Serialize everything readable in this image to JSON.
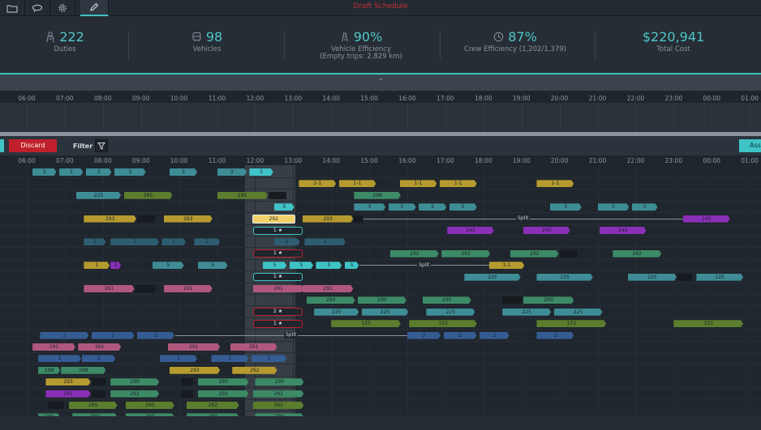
{
  "header": {
    "title": "Draft Schedule",
    "tools": [
      {
        "icon": "folder-icon",
        "active": false
      },
      {
        "icon": "lasso-icon",
        "active": false
      },
      {
        "icon": "gear-icon",
        "active": false
      },
      {
        "icon": "pencil-icon",
        "active": true
      }
    ]
  },
  "kpis": [
    {
      "icon": "duty-person-icon",
      "value": "222",
      "label": "Duties",
      "sublabel": ""
    },
    {
      "icon": "bus-icon",
      "value": "98",
      "label": "Vehicles",
      "sublabel": ""
    },
    {
      "icon": "road-icon",
      "value": "90%",
      "label": "Vehicle Efficiency",
      "sublabel": "(Empty trips: 2,829 km)"
    },
    {
      "icon": "clock-icon",
      "value": "87%",
      "label": "Crew Efficiency (1,202/1,379)",
      "sublabel": ""
    },
    {
      "icon": "",
      "value": "$220,941",
      "label": "Total Cost",
      "sublabel": ""
    }
  ],
  "timeline": {
    "hours": [
      "06:00",
      "07:00",
      "08:00",
      "09:00",
      "10:00",
      "11:00",
      "12:00",
      "13:00",
      "14:00",
      "15:00",
      "16:00",
      "17:00",
      "18:00",
      "19:00",
      "20:00",
      "21:00",
      "22:00",
      "23:00",
      "00:00",
      "01:00"
    ]
  },
  "toolbar": {
    "discard_label": "Discard",
    "filter_label": "Filter",
    "assign_label": "Ass"
  },
  "split_label": "Split",
  "colors": {
    "accent": "#3fc3c6",
    "danger": "#c0202c",
    "teal": "#3e8c96",
    "mustard": "#b59a2f",
    "purple": "#8a2fb8",
    "rose": "#b0587c",
    "green": "#3c8a66",
    "olive": "#5b7d2e",
    "blue": "#355c93",
    "steel": "#2e5d72"
  },
  "gantt": {
    "rows": [
      {
        "bars": [
          {
            "s": 6.15,
            "e": 6.8,
            "c": "teal",
            "t": "3"
          },
          {
            "s": 6.85,
            "e": 7.5,
            "c": "teal",
            "t": "3"
          },
          {
            "s": 7.55,
            "e": 8.25,
            "c": "teal",
            "t": "3"
          },
          {
            "s": 8.3,
            "e": 9.15,
            "c": "teal",
            "t": "3"
          },
          {
            "s": 9.75,
            "e": 10.5,
            "c": "teal",
            "t": "3"
          },
          {
            "s": 11.0,
            "e": 11.8,
            "c": "teal",
            "t": "3"
          },
          {
            "s": 11.85,
            "e": 12.5,
            "c": "accent",
            "t": "5"
          }
        ]
      },
      {
        "bars": [
          {
            "s": 13.15,
            "e": 14.15,
            "c": "mustard",
            "t": "1-1"
          },
          {
            "s": 14.2,
            "e": 15.2,
            "c": "mustard",
            "t": "1-1"
          },
          {
            "s": 15.8,
            "e": 16.8,
            "c": "mustard",
            "t": "1-1"
          },
          {
            "s": 16.85,
            "e": 17.85,
            "c": "mustard",
            "t": "1-1"
          },
          {
            "s": 19.4,
            "e": 20.4,
            "c": "mustard",
            "t": "1-1"
          }
        ]
      },
      {
        "bars": [
          {
            "s": 7.3,
            "e": 8.5,
            "c": "teal",
            "t": "225"
          },
          {
            "s": 8.55,
            "e": 9.85,
            "c": "olive",
            "t": "295"
          },
          {
            "s": 11.0,
            "e": 12.35,
            "c": "olive",
            "t": "295"
          },
          {
            "s": 12.35,
            "e": 12.85,
            "c": "dark",
            "t": ""
          },
          {
            "s": 14.6,
            "e": 15.85,
            "c": "green",
            "t": "298"
          }
        ]
      },
      {
        "bars": [
          {
            "s": 12.5,
            "e": 13.05,
            "c": "accent",
            "t": "5"
          },
          {
            "s": 14.6,
            "e": 15.45,
            "c": "teal",
            "t": "5"
          },
          {
            "s": 15.5,
            "e": 16.25,
            "c": "teal",
            "t": "5"
          },
          {
            "s": 16.3,
            "e": 17.05,
            "c": "teal",
            "t": "5"
          },
          {
            "s": 17.1,
            "e": 17.85,
            "c": "teal",
            "t": "5"
          },
          {
            "s": 19.75,
            "e": 20.6,
            "c": "teal",
            "t": "5"
          },
          {
            "s": 21.0,
            "e": 21.85,
            "c": "teal",
            "t": "5"
          },
          {
            "s": 21.9,
            "e": 22.6,
            "c": "teal",
            "t": "5"
          }
        ]
      },
      {
        "bars": [
          {
            "s": 7.5,
            "e": 8.9,
            "c": "mustard",
            "t": "293"
          },
          {
            "s": 8.9,
            "e": 9.4,
            "c": "dark",
            "t": ""
          },
          {
            "s": 9.6,
            "e": 10.9,
            "c": "mustard",
            "t": "293"
          },
          {
            "s": 11.95,
            "e": 13.05,
            "c": "mustard",
            "t": "292",
            "sel": true
          },
          {
            "s": 13.25,
            "e": 14.6,
            "c": "mustard",
            "t": "293"
          },
          {
            "s": 14.6,
            "e": 14.85,
            "c": "dark",
            "t": ""
          },
          {
            "s": 23.25,
            "e": 24.5,
            "c": "purple",
            "t": "245"
          }
        ],
        "split": {
          "s": 14.85,
          "e": 23.25
        }
      },
      {
        "sels": [
          {
            "s": 11.95,
            "e": 13.25,
            "c": "accent",
            "t": "1 ★"
          }
        ],
        "bars": [
          {
            "s": 17.05,
            "e": 18.3,
            "c": "purple",
            "t": "245"
          },
          {
            "s": 19.05,
            "e": 20.3,
            "c": "purple",
            "t": "245"
          },
          {
            "s": 21.05,
            "e": 22.3,
            "c": "purple",
            "t": "245"
          }
        ]
      },
      {
        "bars": [
          {
            "s": 7.5,
            "e": 8.1,
            "c": "steel",
            "t": "2"
          },
          {
            "s": 8.2,
            "e": 9.5,
            "c": "steel",
            "t": "2"
          },
          {
            "s": 9.55,
            "e": 10.2,
            "c": "steel",
            "t": "2"
          },
          {
            "s": 10.4,
            "e": 11.1,
            "c": "steel",
            "t": "2"
          },
          {
            "s": 12.5,
            "e": 13.2,
            "c": "steel",
            "t": "2"
          },
          {
            "s": 13.3,
            "e": 14.4,
            "c": "steel",
            "t": "2"
          }
        ]
      },
      {
        "sels": [
          {
            "s": 11.95,
            "e": 13.25,
            "c": "danger",
            "t": "1 ★"
          }
        ],
        "bars": [
          {
            "s": 15.55,
            "e": 16.85,
            "c": "green",
            "t": "292"
          },
          {
            "s": 16.9,
            "e": 18.2,
            "c": "green",
            "t": "292"
          },
          {
            "s": 18.7,
            "e": 20.0,
            "c": "green",
            "t": "292"
          },
          {
            "s": 20.0,
            "e": 20.5,
            "c": "dark",
            "t": ""
          },
          {
            "s": 21.4,
            "e": 22.7,
            "c": "green",
            "t": "292"
          }
        ]
      },
      {
        "bars": [
          {
            "s": 7.5,
            "e": 8.2,
            "c": "mustard",
            "t": "1"
          },
          {
            "s": 8.2,
            "e": 8.5,
            "c": "purple",
            "t": "2"
          },
          {
            "s": 9.3,
            "e": 10.15,
            "c": "teal",
            "t": "5"
          },
          {
            "s": 10.5,
            "e": 11.3,
            "c": "teal",
            "t": "5"
          },
          {
            "s": 12.2,
            "e": 12.85,
            "c": "accent",
            "t": "5"
          },
          {
            "s": 12.9,
            "e": 13.55,
            "c": "accent",
            "t": "5"
          },
          {
            "s": 13.6,
            "e": 14.3,
            "c": "accent",
            "t": "5"
          },
          {
            "s": 14.35,
            "e": 14.75,
            "c": "accent",
            "t": "5"
          },
          {
            "s": 18.15,
            "e": 19.1,
            "c": "mustard",
            "t": "1-1"
          }
        ],
        "split": {
          "s": 14.75,
          "e": 18.15
        }
      },
      {
        "sels": [
          {
            "s": 11.95,
            "e": 13.25,
            "c": "accent",
            "t": "1 ★"
          }
        ],
        "bars": [
          {
            "s": 17.5,
            "e": 19.0,
            "c": "teal",
            "t": "225"
          },
          {
            "s": 19.4,
            "e": 20.9,
            "c": "teal",
            "t": "225"
          },
          {
            "s": 21.8,
            "e": 23.1,
            "c": "teal",
            "t": "225"
          },
          {
            "s": 23.1,
            "e": 23.5,
            "c": "dark",
            "t": ""
          },
          {
            "s": 23.6,
            "e": 24.85,
            "c": "teal",
            "t": "225"
          }
        ]
      },
      {
        "bars": [
          {
            "s": 7.5,
            "e": 8.85,
            "c": "rose",
            "t": "291"
          },
          {
            "s": 8.85,
            "e": 9.4,
            "c": "dark",
            "t": ""
          },
          {
            "s": 9.6,
            "e": 10.9,
            "c": "rose",
            "t": "291"
          },
          {
            "s": 11.95,
            "e": 13.3,
            "c": "rose",
            "t": "291"
          },
          {
            "s": 13.25,
            "e": 14.6,
            "c": "rose",
            "t": "291"
          }
        ]
      },
      {
        "bars": [
          {
            "s": 13.35,
            "e": 14.65,
            "c": "green",
            "t": "290"
          },
          {
            "s": 14.7,
            "e": 16.0,
            "c": "green",
            "t": "290"
          },
          {
            "s": 16.4,
            "e": 17.7,
            "c": "green",
            "t": "290"
          },
          {
            "s": 18.5,
            "e": 19.05,
            "c": "dark",
            "t": ""
          },
          {
            "s": 19.05,
            "e": 20.4,
            "c": "green",
            "t": "290"
          }
        ]
      },
      {
        "sels": [
          {
            "s": 11.95,
            "e": 13.25,
            "c": "danger",
            "t": "2 ★"
          }
        ],
        "bars": [
          {
            "s": 13.55,
            "e": 14.75,
            "c": "teal",
            "t": "225"
          },
          {
            "s": 14.8,
            "e": 16.05,
            "c": "teal",
            "t": "225"
          },
          {
            "s": 16.5,
            "e": 17.8,
            "c": "teal",
            "t": "225"
          },
          {
            "s": 18.5,
            "e": 19.8,
            "c": "teal",
            "t": "225"
          },
          {
            "s": 19.85,
            "e": 21.15,
            "c": "teal",
            "t": "225"
          }
        ]
      },
      {
        "sels": [
          {
            "s": 11.95,
            "e": 13.25,
            "c": "danger",
            "t": "1 ★"
          }
        ],
        "bars": [
          {
            "s": 14.0,
            "e": 15.85,
            "c": "olive",
            "t": "133"
          },
          {
            "s": 16.05,
            "e": 17.85,
            "c": "olive",
            "t": "133"
          },
          {
            "s": 19.4,
            "e": 21.25,
            "c": "olive",
            "t": "133"
          },
          {
            "s": 23.0,
            "e": 24.85,
            "c": "olive",
            "t": "133"
          }
        ]
      },
      {
        "bars": [
          {
            "s": 6.35,
            "e": 7.65,
            "c": "blue",
            "t": "2"
          },
          {
            "s": 7.7,
            "e": 8.85,
            "c": "blue",
            "t": "2"
          },
          {
            "s": 8.9,
            "e": 9.9,
            "c": "blue",
            "t": "2"
          },
          {
            "s": 16.0,
            "e": 16.9,
            "c": "blue",
            "t": "2"
          },
          {
            "s": 16.95,
            "e": 17.85,
            "c": "blue",
            "t": "2"
          },
          {
            "s": 17.9,
            "e": 18.7,
            "c": "blue",
            "t": "2"
          },
          {
            "s": 19.4,
            "e": 20.4,
            "c": "blue",
            "t": "2"
          }
        ],
        "split": {
          "s": 9.9,
          "e": 16.0
        }
      },
      {
        "bars": [
          {
            "s": 6.15,
            "e": 7.3,
            "c": "rose",
            "t": "291"
          },
          {
            "s": 7.35,
            "e": 8.5,
            "c": "rose",
            "t": "291"
          },
          {
            "s": 9.7,
            "e": 11.1,
            "c": "rose",
            "t": "291"
          },
          {
            "s": 11.35,
            "e": 12.6,
            "c": "rose",
            "t": "291"
          }
        ]
      },
      {
        "bars": [
          {
            "s": 6.3,
            "e": 7.45,
            "c": "blue",
            "t": "2"
          },
          {
            "s": 7.45,
            "e": 8.35,
            "c": "blue",
            "t": "2"
          },
          {
            "s": 9.5,
            "e": 10.5,
            "c": "blue",
            "t": "2"
          },
          {
            "s": 10.85,
            "e": 11.85,
            "c": "blue",
            "t": "2"
          },
          {
            "s": 11.9,
            "e": 12.85,
            "c": "blue",
            "t": "2"
          }
        ]
      },
      {
        "bars": [
          {
            "s": 6.3,
            "e": 6.9,
            "c": "green",
            "t": "298"
          },
          {
            "s": 6.9,
            "e": 8.1,
            "c": "green",
            "t": "298"
          },
          {
            "s": 9.75,
            "e": 11.1,
            "c": "mustard",
            "t": "293"
          },
          {
            "s": 11.4,
            "e": 12.6,
            "c": "mustard",
            "t": "292"
          }
        ]
      },
      {
        "bars": [
          {
            "s": 6.5,
            "e": 7.7,
            "c": "mustard",
            "t": "293"
          },
          {
            "s": 7.7,
            "e": 8.1,
            "c": "dark",
            "t": ""
          },
          {
            "s": 8.2,
            "e": 9.5,
            "c": "green",
            "t": "290"
          },
          {
            "s": 10.05,
            "e": 10.4,
            "c": "dark",
            "t": ""
          },
          {
            "s": 10.5,
            "e": 11.85,
            "c": "green",
            "t": "290"
          },
          {
            "s": 12.0,
            "e": 13.3,
            "c": "green",
            "t": "290"
          }
        ]
      },
      {
        "bars": [
          {
            "s": 6.5,
            "e": 7.7,
            "c": "purple",
            "t": "245"
          },
          {
            "s": 7.7,
            "e": 8.1,
            "c": "dark",
            "t": ""
          },
          {
            "s": 8.2,
            "e": 9.5,
            "c": "green",
            "t": "292"
          },
          {
            "s": 10.05,
            "e": 10.4,
            "c": "dark",
            "t": ""
          },
          {
            "s": 10.5,
            "e": 11.85,
            "c": "green",
            "t": "292"
          },
          {
            "s": 11.95,
            "e": 13.3,
            "c": "green",
            "t": "292"
          }
        ]
      },
      {
        "bars": [
          {
            "s": 6.55,
            "e": 7.0,
            "c": "dark",
            "t": ""
          },
          {
            "s": 7.1,
            "e": 8.4,
            "c": "olive",
            "t": "295"
          },
          {
            "s": 8.6,
            "e": 9.9,
            "c": "olive",
            "t": "295"
          },
          {
            "s": 10.2,
            "e": 11.6,
            "c": "olive",
            "t": "292"
          },
          {
            "s": 11.95,
            "e": 13.3,
            "c": "olive",
            "t": "292"
          }
        ]
      },
      {
        "bars": [
          {
            "s": 6.3,
            "e": 6.9,
            "c": "green",
            "t": "290"
          },
          {
            "s": 7.2,
            "e": 8.4,
            "c": "green",
            "t": "290"
          },
          {
            "s": 8.6,
            "e": 9.9,
            "c": "green",
            "t": "290"
          },
          {
            "s": 10.2,
            "e": 11.6,
            "c": "green",
            "t": "290"
          },
          {
            "s": 12.0,
            "e": 13.3,
            "c": "green",
            "t": "290"
          }
        ]
      }
    ]
  }
}
